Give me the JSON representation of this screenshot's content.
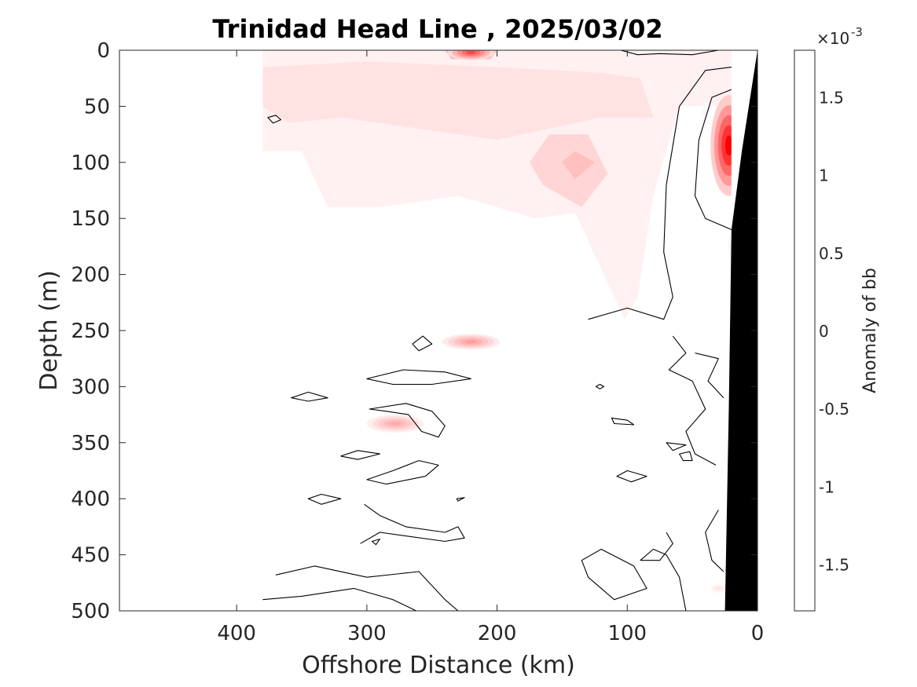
{
  "chart_data": {
    "type": "heatmap",
    "title": "Trinidad Head Line , 2025/03/02",
    "xlabel": "Offshore Distance (km)",
    "ylabel": "Depth (m)",
    "xlim": [
      490,
      0
    ],
    "ylim": [
      0,
      500
    ],
    "x_ticks": [
      {
        "value": 400,
        "label": "400"
      },
      {
        "value": 300,
        "label": "300"
      },
      {
        "value": 200,
        "label": "200"
      },
      {
        "value": 100,
        "label": "100"
      },
      {
        "value": 0,
        "label": "0"
      }
    ],
    "y_ticks": [
      {
        "value": 0,
        "label": "0"
      },
      {
        "value": 50,
        "label": "50"
      },
      {
        "value": 100,
        "label": "100"
      },
      {
        "value": 150,
        "label": "150"
      },
      {
        "value": 200,
        "label": "200"
      },
      {
        "value": 250,
        "label": "250"
      },
      {
        "value": 300,
        "label": "300"
      },
      {
        "value": 350,
        "label": "350"
      },
      {
        "value": 400,
        "label": "400"
      },
      {
        "value": 450,
        "label": "450"
      },
      {
        "value": 500,
        "label": "500"
      }
    ],
    "colorbar": {
      "label": "Anomaly of bb",
      "exponent_base": "×10",
      "exponent_power": "-3",
      "range": [
        -1.8,
        1.8
      ],
      "levels": 36,
      "ticks": [
        {
          "value": 1.5,
          "label": "1.5"
        },
        {
          "value": 1,
          "label": "1"
        },
        {
          "value": 0.5,
          "label": "0.5"
        },
        {
          "value": 0,
          "label": "0"
        },
        {
          "value": -0.5,
          "label": "-0.5"
        },
        {
          "value": -1,
          "label": "-1"
        },
        {
          "value": -1.5,
          "label": "-1.5"
        }
      ],
      "colors": {
        "negative": "#0000ff",
        "zero": "#ffffff",
        "positive": "#ff0000"
      }
    },
    "data_extent_km": [
      380,
      20
    ],
    "bathymetry": [
      [
        0,
        0
      ],
      [
        12,
        90
      ],
      [
        20,
        160
      ],
      [
        22,
        320
      ],
      [
        25,
        500
      ],
      [
        0,
        500
      ]
    ],
    "anomaly_regions": [
      {
        "points": [
          [
            380,
            0
          ],
          [
            20,
            0
          ],
          [
            20,
            50
          ],
          [
            60,
            50
          ],
          [
            80,
            130
          ],
          [
            92,
            220
          ],
          [
            102,
            240
          ],
          [
            140,
            145
          ],
          [
            170,
            150
          ],
          [
            230,
            130
          ],
          [
            290,
            140
          ],
          [
            330,
            140
          ],
          [
            350,
            90
          ],
          [
            380,
            90
          ]
        ],
        "value": 0.1
      },
      {
        "points": [
          [
            380,
            15
          ],
          [
            300,
            10
          ],
          [
            200,
            15
          ],
          [
            120,
            20
          ],
          [
            90,
            25
          ],
          [
            80,
            60
          ],
          [
            120,
            60
          ],
          [
            200,
            80
          ],
          [
            260,
            70
          ],
          [
            320,
            60
          ],
          [
            360,
            65
          ],
          [
            380,
            50
          ]
        ],
        "value": 0.2
      },
      {
        "points": [
          [
            175,
            100
          ],
          [
            160,
            75
          ],
          [
            130,
            75
          ],
          [
            115,
            110
          ],
          [
            135,
            140
          ],
          [
            165,
            120
          ]
        ],
        "value": 0.3
      },
      {
        "points": [
          [
            150,
            100
          ],
          [
            140,
            90
          ],
          [
            125,
            100
          ],
          [
            140,
            115
          ]
        ],
        "value": 0.45
      },
      {
        "points": [
          [
            240,
            0
          ],
          [
            200,
            0
          ],
          [
            205,
            8
          ],
          [
            235,
            8
          ]
        ],
        "value": 0.5
      }
    ],
    "anomaly_blobs": [
      {
        "x": 220,
        "y": 2,
        "rx": 18,
        "ry": 7,
        "value": 1.3
      },
      {
        "x": 22,
        "y": 85,
        "rx": 14,
        "ry": 45,
        "value": 1.8
      },
      {
        "x": 220,
        "y": 260,
        "rx": 22,
        "ry": 7,
        "value": 0.7
      },
      {
        "x": 278,
        "y": 333,
        "rx": 22,
        "ry": 8,
        "value": 0.6
      },
      {
        "x": 30,
        "y": 480,
        "rx": 6,
        "ry": 4,
        "value": 0.2
      },
      {
        "x": 20,
        "y": 175,
        "rx": 3,
        "ry": 14,
        "value": -0.1
      },
      {
        "x": 40,
        "y": 55,
        "rx": 3,
        "ry": 8,
        "value": -0.08
      }
    ],
    "zero_contours": [
      {
        "closed": false,
        "points": [
          [
            105,
            0
          ],
          [
            92,
            4
          ],
          [
            75,
            3
          ],
          [
            50,
            4
          ],
          [
            30,
            0
          ]
        ]
      },
      {
        "closed": false,
        "points": [
          [
            20,
            15
          ],
          [
            40,
            18
          ],
          [
            60,
            50
          ],
          [
            70,
            120
          ],
          [
            72,
            180
          ],
          [
            65,
            220
          ],
          [
            72,
            240
          ],
          [
            100,
            230
          ],
          [
            130,
            240
          ]
        ]
      },
      {
        "closed": false,
        "points": [
          [
            20,
            35
          ],
          [
            35,
            42
          ],
          [
            45,
            80
          ],
          [
            48,
            130
          ],
          [
            40,
            150
          ],
          [
            20,
            160
          ]
        ]
      },
      {
        "closed": true,
        "points": [
          [
            257,
            255
          ],
          [
            265,
            262
          ],
          [
            260,
            268
          ],
          [
            250,
            262
          ]
        ]
      },
      {
        "closed": true,
        "points": [
          [
            300,
            293
          ],
          [
            272,
            285
          ],
          [
            240,
            287
          ],
          [
            220,
            293
          ],
          [
            250,
            298
          ],
          [
            280,
            298
          ]
        ]
      },
      {
        "closed": true,
        "points": [
          [
            358,
            310
          ],
          [
            345,
            305
          ],
          [
            330,
            310
          ],
          [
            345,
            313
          ]
        ]
      },
      {
        "closed": true,
        "points": [
          [
            298,
            320
          ],
          [
            270,
            315
          ],
          [
            250,
            322
          ],
          [
            240,
            335
          ],
          [
            245,
            345
          ],
          [
            258,
            340
          ],
          [
            268,
            325
          ],
          [
            285,
            322
          ]
        ]
      },
      {
        "closed": true,
        "points": [
          [
            320,
            362
          ],
          [
            307,
            357
          ],
          [
            290,
            360
          ],
          [
            307,
            365
          ]
        ]
      },
      {
        "closed": true,
        "points": [
          [
            300,
            383
          ],
          [
            280,
            375
          ],
          [
            260,
            366
          ],
          [
            245,
            370
          ],
          [
            255,
            380
          ],
          [
            285,
            387
          ]
        ]
      },
      {
        "closed": true,
        "points": [
          [
            345,
            400
          ],
          [
            335,
            396
          ],
          [
            320,
            400
          ],
          [
            335,
            405
          ]
        ]
      },
      {
        "closed": false,
        "points": [
          [
            302,
            405
          ],
          [
            290,
            415
          ],
          [
            270,
            425
          ],
          [
            240,
            430
          ],
          [
            230,
            425
          ],
          [
            225,
            435
          ],
          [
            240,
            438
          ],
          [
            290,
            430
          ],
          [
            305,
            440
          ]
        ]
      },
      {
        "closed": false,
        "points": [
          [
            370,
            468
          ],
          [
            340,
            460
          ],
          [
            300,
            470
          ],
          [
            260,
            465
          ],
          [
            240,
            490
          ],
          [
            230,
            500
          ]
        ]
      },
      {
        "closed": false,
        "points": [
          [
            380,
            490
          ],
          [
            350,
            487
          ],
          [
            310,
            480
          ],
          [
            280,
            490
          ],
          [
            262,
            500
          ]
        ]
      },
      {
        "closed": true,
        "points": [
          [
            135,
            455
          ],
          [
            120,
            445
          ],
          [
            95,
            460
          ],
          [
            85,
            480
          ],
          [
            110,
            490
          ],
          [
            130,
            470
          ]
        ]
      },
      {
        "closed": false,
        "points": [
          [
            90,
            455
          ],
          [
            80,
            445
          ],
          [
            70,
            450
          ],
          [
            60,
            470
          ],
          [
            55,
            500
          ]
        ]
      },
      {
        "closed": true,
        "points": [
          [
            108,
            380
          ],
          [
            100,
            375
          ],
          [
            85,
            380
          ],
          [
            97,
            385
          ]
        ]
      },
      {
        "closed": true,
        "points": [
          [
            112,
            328
          ],
          [
            100,
            330
          ],
          [
            95,
            334
          ],
          [
            110,
            333
          ]
        ]
      },
      {
        "closed": true,
        "points": [
          [
            70,
            350
          ],
          [
            55,
            352
          ],
          [
            65,
            357
          ]
        ]
      },
      {
        "closed": true,
        "points": [
          [
            60,
            360
          ],
          [
            52,
            358
          ],
          [
            50,
            366
          ],
          [
            57,
            366
          ]
        ]
      },
      {
        "closed": false,
        "points": [
          [
            70,
            430
          ],
          [
            65,
            440
          ],
          [
            75,
            455
          ],
          [
            90,
            455
          ]
        ]
      },
      {
        "closed": false,
        "points": [
          [
            65,
            255
          ],
          [
            55,
            270
          ],
          [
            68,
            285
          ],
          [
            50,
            295
          ],
          [
            40,
            320
          ],
          [
            55,
            340
          ],
          [
            48,
            360
          ],
          [
            32,
            370
          ]
        ]
      },
      {
        "closed": false,
        "points": [
          [
            48,
            270
          ],
          [
            30,
            275
          ],
          [
            38,
            295
          ],
          [
            26,
            310
          ]
        ]
      },
      {
        "closed": false,
        "points": [
          [
            30,
            410
          ],
          [
            40,
            430
          ],
          [
            35,
            455
          ],
          [
            26,
            465
          ]
        ]
      },
      {
        "closed": true,
        "points": [
          [
            121,
            298
          ],
          [
            118,
            300
          ],
          [
            121,
            302
          ],
          [
            124,
            300
          ]
        ]
      },
      {
        "closed": true,
        "points": [
          [
            231,
            400
          ],
          [
            225,
            399
          ],
          [
            230,
            402
          ]
        ]
      },
      {
        "closed": true,
        "points": [
          [
            376,
            60
          ],
          [
            370,
            58
          ],
          [
            366,
            62
          ],
          [
            372,
            65
          ]
        ]
      },
      {
        "closed": true,
        "points": [
          [
            296,
            438
          ],
          [
            290,
            436
          ],
          [
            293,
            441
          ]
        ]
      }
    ]
  }
}
